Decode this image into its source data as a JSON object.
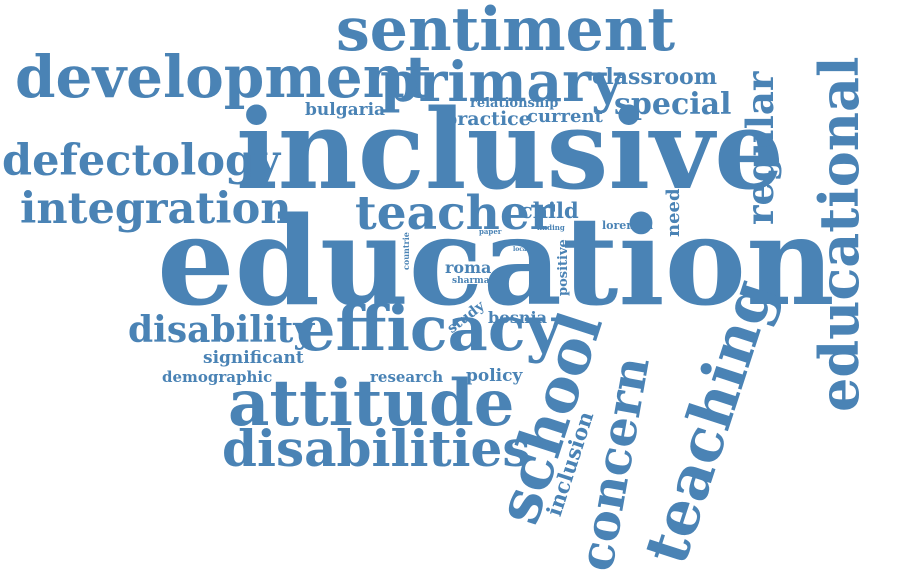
{
  "cloud": {
    "color": "#4a83b5",
    "words": [
      {
        "key": "sentiment",
        "text": "sentiment",
        "weight": 60,
        "orientation": "horizontal"
      },
      {
        "key": "development",
        "text": "development",
        "weight": 70,
        "orientation": "horizontal"
      },
      {
        "key": "primary",
        "text": "primary",
        "weight": 64,
        "orientation": "horizontal"
      },
      {
        "key": "classroom",
        "text": "classroom",
        "weight": 22,
        "orientation": "horizontal"
      },
      {
        "key": "relationship",
        "text": "relationship",
        "weight": 12,
        "orientation": "horizontal"
      },
      {
        "key": "special",
        "text": "special",
        "weight": 28,
        "orientation": "horizontal"
      },
      {
        "key": "bulgaria",
        "text": "bulgaria",
        "weight": 16,
        "orientation": "horizontal"
      },
      {
        "key": "practice",
        "text": "practice",
        "weight": 20,
        "orientation": "horizontal"
      },
      {
        "key": "current",
        "text": "current",
        "weight": 18,
        "orientation": "horizontal"
      },
      {
        "key": "inclusive",
        "text": "inclusive",
        "weight": 115,
        "orientation": "horizontal"
      },
      {
        "key": "defectology",
        "text": "defectology",
        "weight": 46,
        "orientation": "horizontal"
      },
      {
        "key": "integration",
        "text": "integration",
        "weight": 46,
        "orientation": "horizontal"
      },
      {
        "key": "teacher",
        "text": "teacher",
        "weight": 48,
        "orientation": "horizontal"
      },
      {
        "key": "child",
        "text": "child",
        "weight": 20,
        "orientation": "horizontal"
      },
      {
        "key": "paper",
        "text": "paper",
        "weight": 6,
        "orientation": "horizontal"
      },
      {
        "key": "finding",
        "text": "finding",
        "weight": 6,
        "orientation": "horizontal"
      },
      {
        "key": "loreman",
        "text": "loreman",
        "weight": 10,
        "orientation": "horizontal"
      },
      {
        "key": "need",
        "text": "need",
        "weight": 18,
        "orientation": "vertical"
      },
      {
        "key": "regular",
        "text": "regular",
        "weight": 38,
        "orientation": "vertical"
      },
      {
        "key": "educational",
        "text": "educational",
        "weight": 55,
        "orientation": "vertical"
      },
      {
        "key": "education",
        "text": "education",
        "weight": 140,
        "orientation": "horizontal"
      },
      {
        "key": "countrie",
        "text": "countrie",
        "weight": 8,
        "orientation": "vertical"
      },
      {
        "key": "local",
        "text": "local",
        "weight": 5,
        "orientation": "horizontal"
      },
      {
        "key": "roma",
        "text": "roma",
        "weight": 16,
        "orientation": "horizontal"
      },
      {
        "key": "sharma",
        "text": "sharma",
        "weight": 9,
        "orientation": "horizontal"
      },
      {
        "key": "positive",
        "text": "positive",
        "weight": 13,
        "orientation": "vertical"
      },
      {
        "key": "disability",
        "text": "disability",
        "weight": 34,
        "orientation": "horizontal"
      },
      {
        "key": "efficacy",
        "text": "efficacy",
        "weight": 62,
        "orientation": "horizontal"
      },
      {
        "key": "study",
        "text": "study",
        "weight": 14,
        "orientation": "angled"
      },
      {
        "key": "bosnia",
        "text": "bosnia",
        "weight": 16,
        "orientation": "horizontal"
      },
      {
        "key": "school",
        "text": "school",
        "weight": 60,
        "orientation": "vertical"
      },
      {
        "key": "concern",
        "text": "concern",
        "weight": 48,
        "orientation": "vertical"
      },
      {
        "key": "teaching",
        "text": "teaching",
        "weight": 62,
        "orientation": "vertical"
      },
      {
        "key": "significant",
        "text": "significant",
        "weight": 17,
        "orientation": "horizontal"
      },
      {
        "key": "demographic",
        "text": "demographic",
        "weight": 15,
        "orientation": "horizontal"
      },
      {
        "key": "research",
        "text": "research",
        "weight": 15,
        "orientation": "horizontal"
      },
      {
        "key": "policy",
        "text": "policy",
        "weight": 17,
        "orientation": "horizontal"
      },
      {
        "key": "attitude",
        "text": "attitude",
        "weight": 62,
        "orientation": "horizontal"
      },
      {
        "key": "inclusion",
        "text": "inclusion",
        "weight": 20,
        "orientation": "vertical"
      },
      {
        "key": "disabilities",
        "text": "disabilities",
        "weight": 50,
        "orientation": "horizontal"
      }
    ]
  }
}
